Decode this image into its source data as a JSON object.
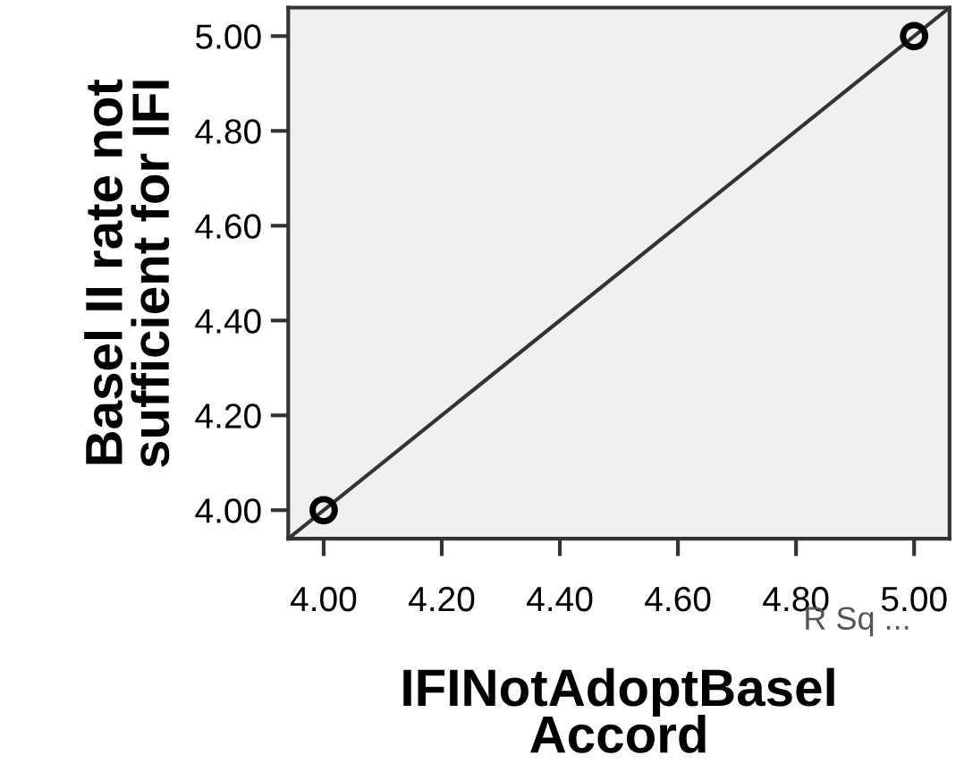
{
  "chart_data": {
    "type": "scatter",
    "xlabel": "IFINotAdoptBasel\nAccord",
    "ylabel": "Basel II rate not\nsufficient for IFI",
    "series": [
      {
        "color": "#000000",
        "x": [
          4.0,
          5.0
        ],
        "values": [
          4.0,
          5.0
        ],
        "marker": "circle"
      },
      {
        "type": "line",
        "color": "#333333",
        "x": [
          3.94,
          5.06
        ],
        "values": [
          3.94,
          5.06
        ],
        "marker": "none"
      }
    ],
    "xlim": [
      3.94,
      5.06
    ],
    "ylim": [
      3.94,
      5.06
    ],
    "xticks": [
      {
        "value": 4.0,
        "label": "4.00"
      },
      {
        "value": 4.2,
        "label": "4.20"
      },
      {
        "value": 4.4,
        "label": "4.40"
      },
      {
        "value": 4.6,
        "label": "4.60"
      },
      {
        "value": 4.8,
        "label": "4.80"
      },
      {
        "value": 5.0,
        "label": "5.00"
      }
    ],
    "yticks": [
      {
        "value": 4.0,
        "label": "4.00"
      },
      {
        "value": 4.2,
        "label": "4.20"
      },
      {
        "value": 4.4,
        "label": "4.40"
      },
      {
        "value": 4.6,
        "label": "4.60"
      },
      {
        "value": 4.8,
        "label": "4.80"
      },
      {
        "value": 5.0,
        "label": "5.00"
      }
    ],
    "annotations": [
      "R Sq ..."
    ],
    "grid": false
  }
}
